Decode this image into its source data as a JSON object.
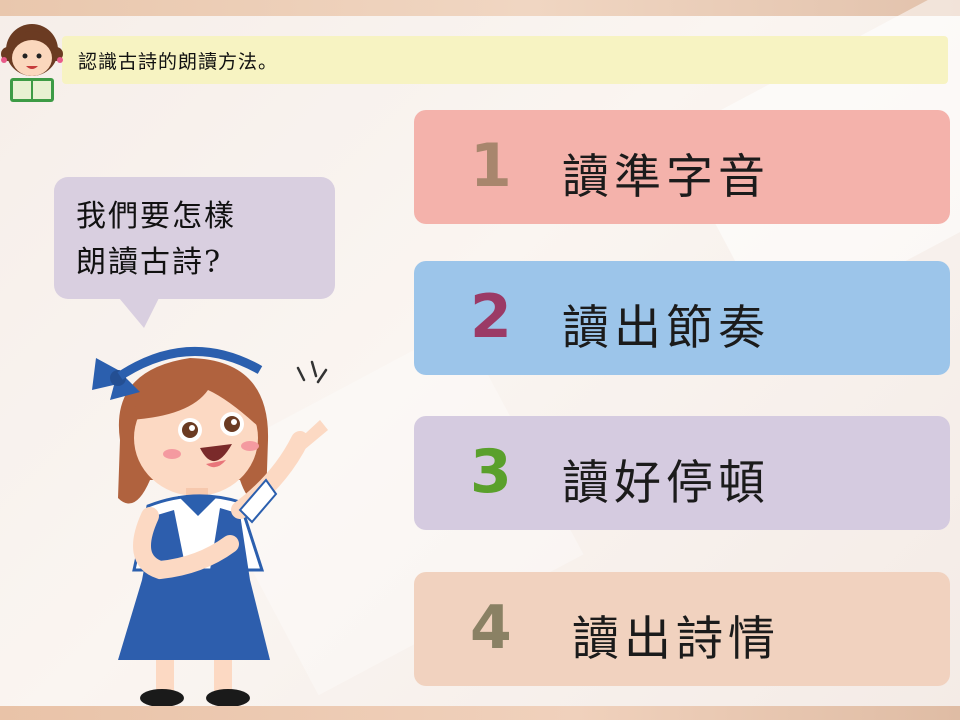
{
  "header": {
    "title": "認識古詩的朗讀方法。"
  },
  "bubble": {
    "text": "我們要怎樣\n朗讀古詩?"
  },
  "steps": [
    {
      "number": "1",
      "label": "讀準字音",
      "card_color": "#f4b2ab",
      "number_color": "#a8866d"
    },
    {
      "number": "2",
      "label": "讀出節奏",
      "card_color": "#9cc5ea",
      "number_color": "#9b3a66"
    },
    {
      "number": "3",
      "label": "讀好停頓",
      "card_color": "#d5cbe0",
      "number_color": "#5aa02c"
    },
    {
      "number": "4",
      "label": "讀出詩情",
      "card_color": "#f1d2bf",
      "number_color": "#8a8164"
    }
  ]
}
